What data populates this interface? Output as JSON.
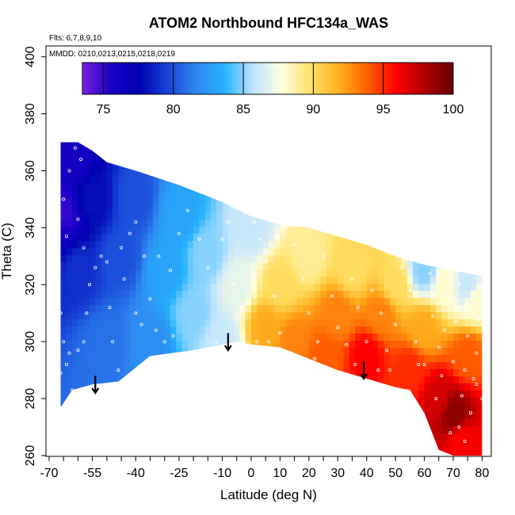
{
  "chart_data": {
    "type": "heatmap",
    "title": "ATOM2 Northbound HFC134a_WAS",
    "flights_label": "Flts: 6,7,8,9,10",
    "dates_label": "MMDD: 0210,0213,0215,0218,0219",
    "xlabel": "Latitude (deg N)",
    "ylabel": "Theta (C)",
    "xlim": [
      -70,
      82
    ],
    "ylim": [
      260,
      405
    ],
    "x_ticks": [
      -70,
      -55,
      -40,
      -25,
      -10,
      0,
      10,
      20,
      30,
      40,
      50,
      60,
      70,
      80
    ],
    "x_tick_labels": [
      "-70",
      "-55",
      "-40",
      "-25",
      "-10",
      "0",
      "10",
      "20",
      "30",
      "40",
      "50",
      "60",
      "70",
      "80"
    ],
    "y_ticks": [
      260,
      280,
      300,
      320,
      340,
      360,
      380,
      400
    ],
    "y_tick_labels": [
      "260",
      "280",
      "300",
      "320",
      "340",
      "360",
      "380",
      "400"
    ],
    "colorbar": {
      "range": [
        73.5,
        100
      ],
      "ticks": [
        75,
        80,
        85,
        90,
        95,
        100
      ],
      "tick_labels": [
        "75",
        "80",
        "85",
        "90",
        "95",
        "100"
      ],
      "colors": [
        "#7b1fe0",
        "#1a00c8",
        "#0000b0",
        "#1844d8",
        "#2f86f0",
        "#26b4ff",
        "#bfe4ff",
        "#ffffe0",
        "#ffe066",
        "#ffb020",
        "#ff6000",
        "#ff0000",
        "#b00000",
        "#6a0000"
      ]
    },
    "upper_boundary": [
      [
        -66,
        370
      ],
      [
        -60,
        370
      ],
      [
        -55,
        367
      ],
      [
        -50,
        363
      ],
      [
        -40,
        360
      ],
      [
        -25,
        355
      ],
      [
        -10,
        349
      ],
      [
        0,
        344
      ],
      [
        10,
        341
      ],
      [
        20,
        340
      ],
      [
        30,
        337
      ],
      [
        40,
        334
      ],
      [
        50,
        330
      ],
      [
        60,
        327
      ],
      [
        70,
        325
      ],
      [
        80,
        323
      ]
    ],
    "lower_boundary": [
      [
        -66,
        277
      ],
      [
        -62,
        283
      ],
      [
        -55,
        285
      ],
      [
        -46,
        286
      ],
      [
        -35,
        295
      ],
      [
        -20,
        297
      ],
      [
        -5,
        300
      ],
      [
        0,
        299
      ],
      [
        10,
        298
      ],
      [
        20,
        294
      ],
      [
        30,
        290
      ],
      [
        40,
        287
      ],
      [
        50,
        284
      ],
      [
        55,
        283
      ],
      [
        60,
        275
      ],
      [
        65,
        262
      ],
      [
        70,
        260
      ],
      [
        80,
        260
      ]
    ],
    "value_field": [
      {
        "lat": -68,
        "theta": 340,
        "value": 76
      },
      {
        "lat": -65,
        "theta": 345,
        "value": 75
      },
      {
        "lat": -62,
        "theta": 365,
        "value": 76
      },
      {
        "lat": -60,
        "theta": 325,
        "value": 79
      },
      {
        "lat": -55,
        "theta": 350,
        "value": 78
      },
      {
        "lat": -50,
        "theta": 300,
        "value": 81
      },
      {
        "lat": -45,
        "theta": 330,
        "value": 80
      },
      {
        "lat": -40,
        "theta": 350,
        "value": 80
      },
      {
        "lat": -35,
        "theta": 300,
        "value": 82
      },
      {
        "lat": -30,
        "theta": 325,
        "value": 83
      },
      {
        "lat": -25,
        "theta": 345,
        "value": 83
      },
      {
        "lat": -20,
        "theta": 310,
        "value": 85
      },
      {
        "lat": -15,
        "theta": 330,
        "value": 85
      },
      {
        "lat": -10,
        "theta": 300,
        "value": 86
      },
      {
        "lat": -5,
        "theta": 320,
        "value": 87
      },
      {
        "lat": 0,
        "theta": 340,
        "value": 86
      },
      {
        "lat": 5,
        "theta": 305,
        "value": 92
      },
      {
        "lat": 10,
        "theta": 320,
        "value": 90
      },
      {
        "lat": 15,
        "theta": 300,
        "value": 93
      },
      {
        "lat": 20,
        "theta": 330,
        "value": 89
      },
      {
        "lat": 25,
        "theta": 295,
        "value": 94
      },
      {
        "lat": 30,
        "theta": 310,
        "value": 93
      },
      {
        "lat": 35,
        "theta": 325,
        "value": 90
      },
      {
        "lat": 40,
        "theta": 295,
        "value": 96
      },
      {
        "lat": 45,
        "theta": 310,
        "value": 93
      },
      {
        "lat": 50,
        "theta": 320,
        "value": 90
      },
      {
        "lat": 55,
        "theta": 290,
        "value": 95
      },
      {
        "lat": 60,
        "theta": 305,
        "value": 92
      },
      {
        "lat": 65,
        "theta": 280,
        "value": 97
      },
      {
        "lat": 70,
        "theta": 275,
        "value": 99
      },
      {
        "lat": 75,
        "theta": 295,
        "value": 94
      },
      {
        "lat": 78,
        "theta": 315,
        "value": 88
      },
      {
        "lat": 75,
        "theta": 320,
        "value": 86
      },
      {
        "lat": 67,
        "theta": 320,
        "value": 88
      },
      {
        "lat": 60,
        "theta": 325,
        "value": 85
      },
      {
        "lat": 73,
        "theta": 265,
        "value": 96
      }
    ],
    "arrows": [
      {
        "lat": -54,
        "theta_top": 288,
        "theta_bottom": 282
      },
      {
        "lat": -8,
        "theta_top": 303,
        "theta_bottom": 297
      },
      {
        "lat": 39,
        "theta_top": 293,
        "theta_bottom": 287
      }
    ],
    "sample_points": [
      [
        -67,
        282
      ],
      [
        -66,
        289
      ],
      [
        -64,
        292
      ],
      [
        -62,
        283
      ],
      [
        -60,
        297
      ],
      [
        -58,
        300
      ],
      [
        -57,
        310
      ],
      [
        -56,
        320
      ],
      [
        -54,
        326
      ],
      [
        -52,
        330
      ],
      [
        -50,
        328
      ],
      [
        -49,
        312
      ],
      [
        -48,
        300
      ],
      [
        -46,
        290
      ],
      [
        -44,
        322
      ],
      [
        -42,
        338
      ],
      [
        -40,
        342
      ],
      [
        -37,
        330
      ],
      [
        -35,
        315
      ],
      [
        -33,
        304
      ],
      [
        -30,
        300
      ],
      [
        -27,
        302
      ],
      [
        -25,
        338
      ],
      [
        -22,
        346
      ],
      [
        -18,
        336
      ],
      [
        -15,
        326
      ],
      [
        -12,
        300
      ],
      [
        -10,
        336
      ],
      [
        -8,
        342
      ],
      [
        -6,
        320
      ],
      [
        -3,
        312
      ],
      [
        -2,
        345
      ],
      [
        1,
        342
      ],
      [
        3,
        336
      ],
      [
        5,
        328
      ],
      [
        8,
        316
      ],
      [
        10,
        303
      ],
      [
        12,
        340
      ],
      [
        15,
        334
      ],
      [
        18,
        322
      ],
      [
        20,
        310
      ],
      [
        23,
        300
      ],
      [
        25,
        330
      ],
      [
        28,
        316
      ],
      [
        30,
        305
      ],
      [
        33,
        299
      ],
      [
        35,
        322
      ],
      [
        37,
        312
      ],
      [
        40,
        300
      ],
      [
        42,
        318
      ],
      [
        45,
        310
      ],
      [
        47,
        297
      ],
      [
        50,
        306
      ],
      [
        52,
        326
      ],
      [
        55,
        318
      ],
      [
        57,
        300
      ],
      [
        60,
        292
      ],
      [
        62,
        324
      ],
      [
        63,
        309
      ],
      [
        65,
        298
      ],
      [
        66,
        288
      ],
      [
        67,
        304
      ],
      [
        68,
        316
      ],
      [
        70,
        293
      ],
      [
        71,
        307
      ],
      [
        72,
        320
      ],
      [
        73,
        281
      ],
      [
        74,
        290
      ],
      [
        75,
        302
      ],
      [
        76,
        312
      ],
      [
        77,
        287
      ],
      [
        78,
        296
      ],
      [
        79,
        308
      ],
      [
        80,
        280
      ],
      [
        -68,
        330
      ],
      [
        -65,
        350
      ],
      [
        -63,
        360
      ],
      [
        -61,
        368
      ],
      [
        -59,
        364
      ],
      [
        -66,
        310
      ],
      [
        -65,
        300
      ],
      [
        -63,
        296
      ],
      [
        -64,
        337
      ],
      [
        -60,
        343
      ],
      [
        -58,
        333
      ],
      [
        -45,
        333
      ],
      [
        -40,
        310
      ],
      [
        -38,
        306
      ],
      [
        -32,
        330
      ],
      [
        -28,
        325
      ],
      [
        2,
        300
      ],
      [
        6,
        300
      ],
      [
        14,
        296
      ],
      [
        22,
        294
      ],
      [
        36,
        292
      ],
      [
        44,
        290
      ],
      [
        48,
        290
      ],
      [
        58,
        292
      ],
      [
        64,
        280
      ],
      [
        69,
        268
      ],
      [
        72,
        270
      ],
      [
        74,
        265
      ],
      [
        76,
        275
      ],
      [
        78,
        285
      ]
    ]
  }
}
